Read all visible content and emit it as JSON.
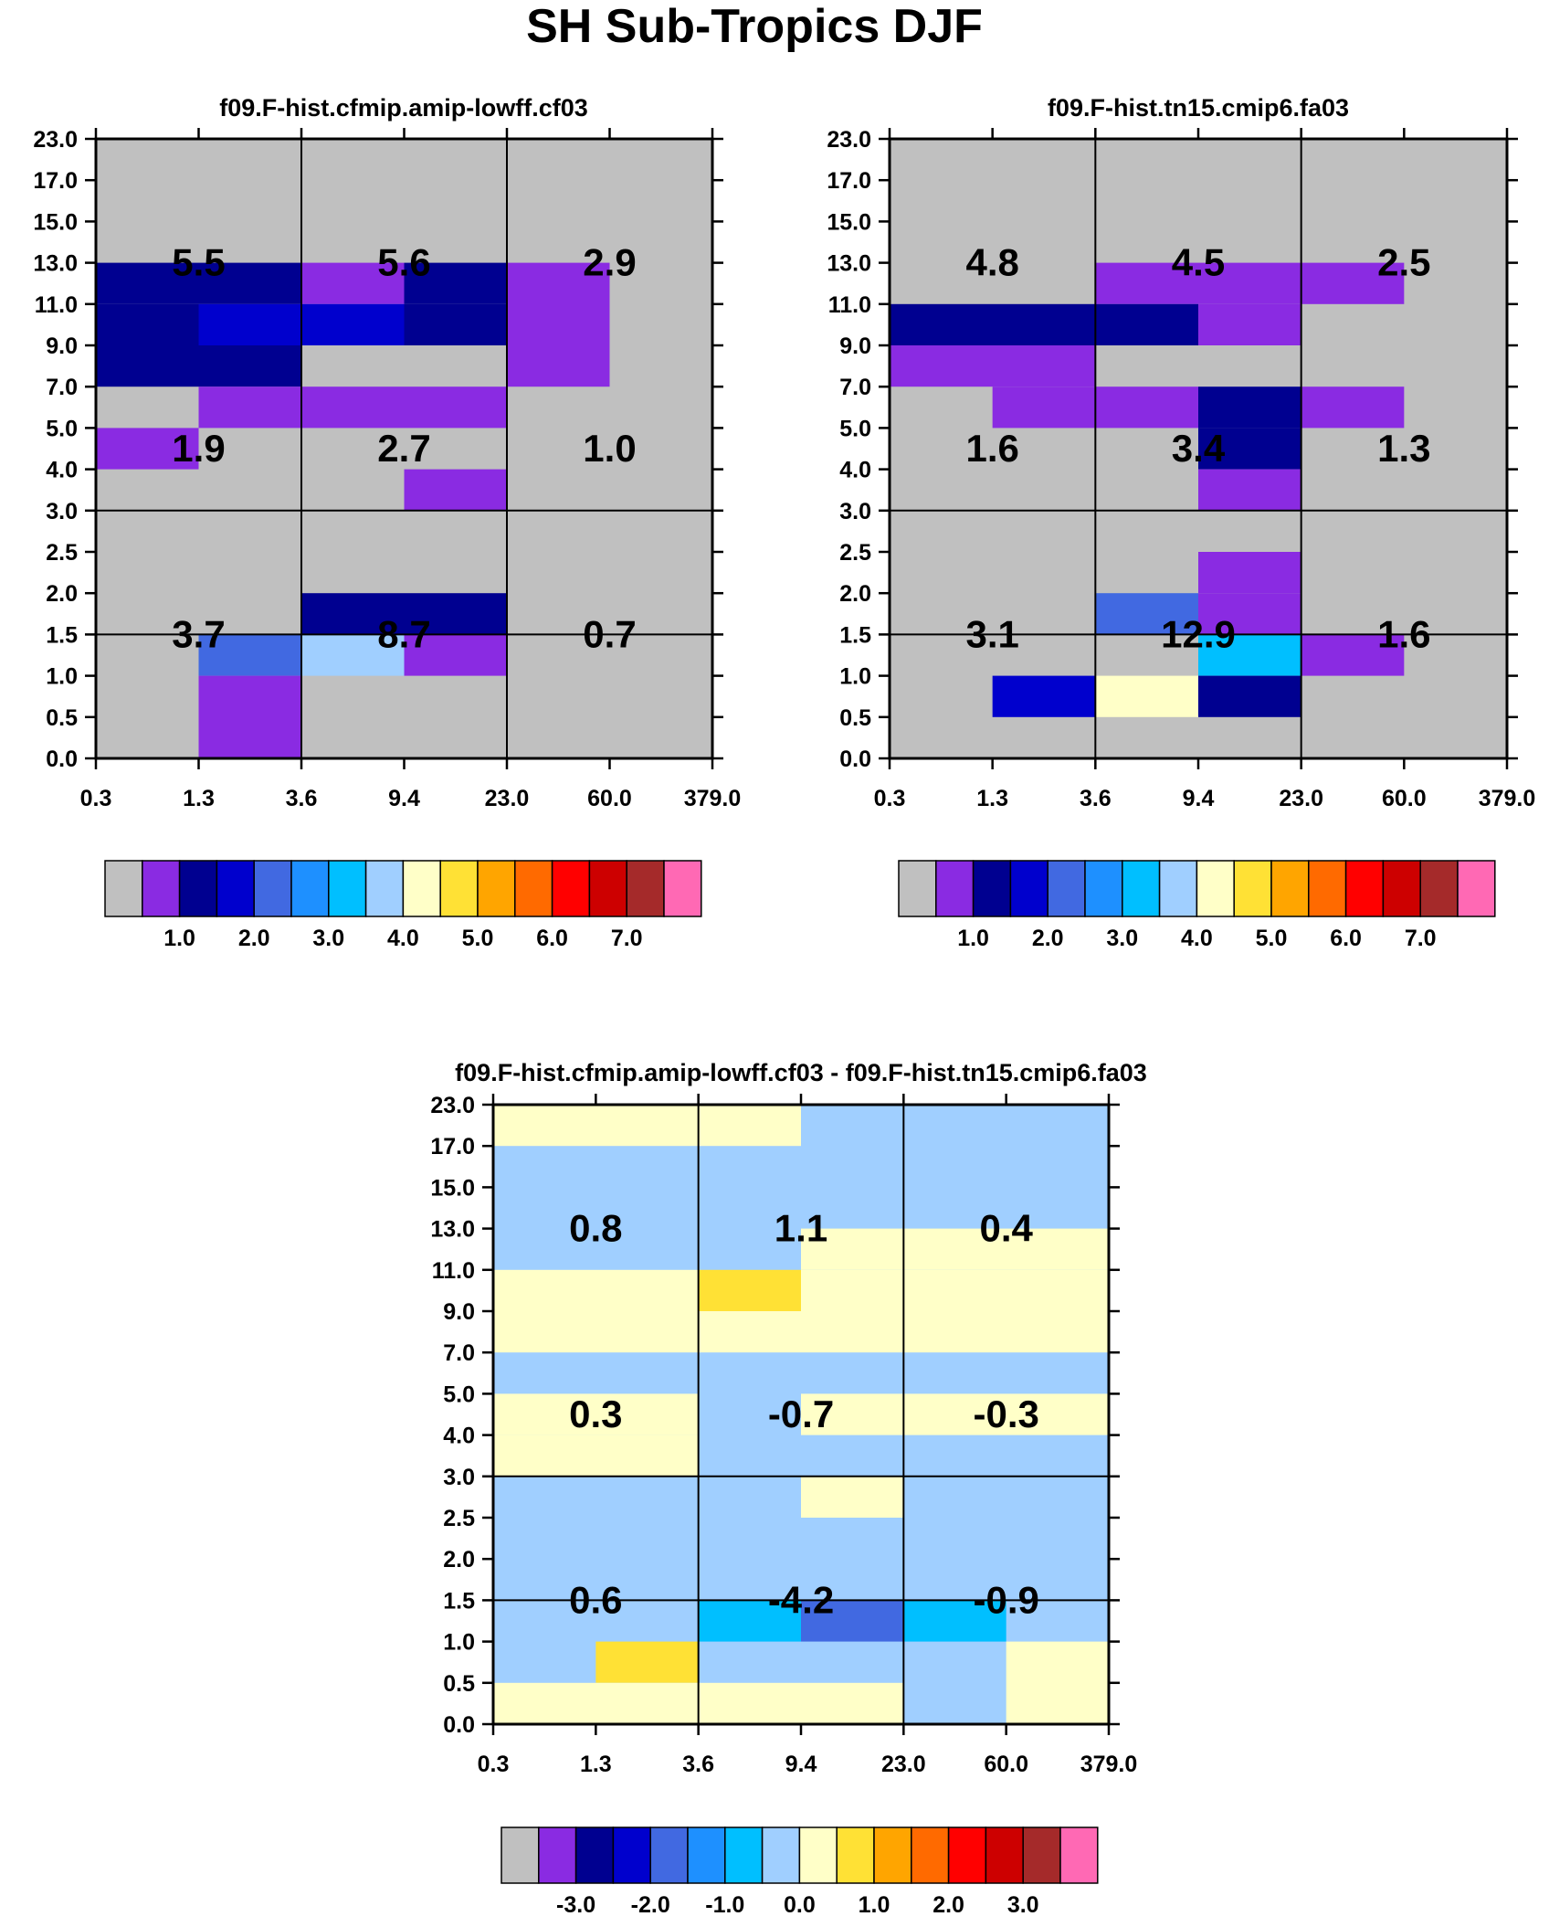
{
  "title": "SH Sub-Tropics DJF",
  "x_tick_labels": [
    "0.3",
    "1.3",
    "3.6",
    "9.4",
    "23.0",
    "60.0",
    "379.0"
  ],
  "y_tick_labels": [
    "0.0",
    "0.5",
    "1.0",
    "1.5",
    "2.0",
    "2.5",
    "3.0",
    "4.0",
    "5.0",
    "7.0",
    "9.0",
    "11.0",
    "13.0",
    "15.0",
    "17.0",
    "23.0"
  ],
  "colors": {
    "gray": "#c0c0c0",
    "purple": "#8a2be2",
    "navy": "#000090",
    "blue": "#0000cd",
    "royal": "#4169e1",
    "dodger": "#1e90ff",
    "sky": "#00bfff",
    "lightsky": "#a0cfff",
    "cream": "#ffffc8",
    "yellow": "#ffe135",
    "orange": "#ffa500",
    "darkorange": "#ff6a00",
    "red": "#ff0000",
    "crimson": "#cd0000",
    "brown": "#a52a2a",
    "pink": "#ff69b4"
  },
  "colorbar_colors": [
    "#c0c0c0",
    "#8a2be2",
    "#000090",
    "#0000cd",
    "#4169e1",
    "#1e90ff",
    "#00bfff",
    "#a0cfff",
    "#ffffc8",
    "#ffe135",
    "#ffa500",
    "#ff6a00",
    "#ff0000",
    "#cd0000",
    "#a52a2a",
    "#ff69b4"
  ],
  "chart_data": [
    {
      "type": "heatmap",
      "title": "f09.F-hist.cfmip.amip-lowff.cf03",
      "xlabel": "",
      "ylabel": "",
      "x_bins": 6,
      "y_bins": 15,
      "background": "gray",
      "cells": [
        {
          "x": [
            0,
            2
          ],
          "y": [
            11,
            12
          ],
          "c": "navy"
        },
        {
          "x": [
            1,
            2
          ],
          "y": [
            10,
            11
          ],
          "c": "blue"
        },
        {
          "x": [
            0,
            1
          ],
          "y": [
            10,
            11
          ],
          "c": "navy"
        },
        {
          "x": [
            0,
            2
          ],
          "y": [
            9,
            10
          ],
          "c": "navy"
        },
        {
          "x": [
            2,
            3
          ],
          "y": [
            11,
            12
          ],
          "c": "purple"
        },
        {
          "x": [
            3,
            4
          ],
          "y": [
            11,
            12
          ],
          "c": "navy"
        },
        {
          "x": [
            2,
            3
          ],
          "y": [
            10,
            11
          ],
          "c": "blue"
        },
        {
          "x": [
            3,
            4
          ],
          "y": [
            10,
            11
          ],
          "c": "navy"
        },
        {
          "x": [
            4,
            5
          ],
          "y": [
            9,
            12
          ],
          "c": "purple"
        },
        {
          "x": [
            1,
            4
          ],
          "y": [
            8,
            9
          ],
          "c": "purple"
        },
        {
          "x": [
            0,
            1
          ],
          "y": [
            7,
            8
          ],
          "c": "purple"
        },
        {
          "x": [
            3,
            4
          ],
          "y": [
            6,
            7
          ],
          "c": "purple"
        },
        {
          "x": [
            2,
            4
          ],
          "y": [
            3,
            4
          ],
          "c": "navy"
        },
        {
          "x": [
            1,
            2
          ],
          "y": [
            2,
            3
          ],
          "c": "royal"
        },
        {
          "x": [
            2,
            3
          ],
          "y": [
            2,
            3
          ],
          "c": "lightsky"
        },
        {
          "x": [
            3,
            4
          ],
          "y": [
            2,
            3
          ],
          "c": "purple"
        },
        {
          "x": [
            1,
            2
          ],
          "y": [
            0,
            2
          ],
          "c": "purple"
        }
      ],
      "grid_values": [
        [
          "5.5",
          "5.6",
          "2.9"
        ],
        [
          "1.9",
          "2.7",
          "1.0"
        ],
        [
          "3.7",
          "8.7",
          "0.7"
        ]
      ],
      "colorbar": {
        "tick_labels": [
          "1.0",
          "2.0",
          "3.0",
          "4.0",
          "5.0",
          "6.0",
          "7.0"
        ],
        "first_tick_boundary": 2
      }
    },
    {
      "type": "heatmap",
      "title": "f09.F-hist.tn15.cmip6.fa03",
      "xlabel": "",
      "ylabel": "",
      "x_bins": 6,
      "y_bins": 15,
      "background": "gray",
      "cells": [
        {
          "x": [
            2,
            4
          ],
          "y": [
            11,
            12
          ],
          "c": "purple"
        },
        {
          "x": [
            4,
            5
          ],
          "y": [
            11,
            12
          ],
          "c": "purple"
        },
        {
          "x": [
            0,
            3
          ],
          "y": [
            10,
            11
          ],
          "c": "navy"
        },
        {
          "x": [
            3,
            4
          ],
          "y": [
            10,
            11
          ],
          "c": "purple"
        },
        {
          "x": [
            0,
            2
          ],
          "y": [
            9,
            10
          ],
          "c": "purple"
        },
        {
          "x": [
            1,
            3
          ],
          "y": [
            8,
            9
          ],
          "c": "purple"
        },
        {
          "x": [
            3,
            4
          ],
          "y": [
            8,
            9
          ],
          "c": "navy"
        },
        {
          "x": [
            4,
            5
          ],
          "y": [
            8,
            9
          ],
          "c": "purple"
        },
        {
          "x": [
            3,
            4
          ],
          "y": [
            7,
            8
          ],
          "c": "navy"
        },
        {
          "x": [
            3,
            4
          ],
          "y": [
            6,
            7
          ],
          "c": "purple"
        },
        {
          "x": [
            3,
            4
          ],
          "y": [
            4,
            5
          ],
          "c": "purple"
        },
        {
          "x": [
            2,
            3
          ],
          "y": [
            3,
            4
          ],
          "c": "royal"
        },
        {
          "x": [
            3,
            4
          ],
          "y": [
            3,
            4
          ],
          "c": "purple"
        },
        {
          "x": [
            3,
            4
          ],
          "y": [
            2,
            3
          ],
          "c": "sky"
        },
        {
          "x": [
            4,
            5
          ],
          "y": [
            2,
            3
          ],
          "c": "purple"
        },
        {
          "x": [
            1,
            2
          ],
          "y": [
            1,
            2
          ],
          "c": "blue"
        },
        {
          "x": [
            2,
            3
          ],
          "y": [
            1,
            2
          ],
          "c": "cream"
        },
        {
          "x": [
            3,
            4
          ],
          "y": [
            1,
            2
          ],
          "c": "navy"
        }
      ],
      "grid_values": [
        [
          "4.8",
          "4.5",
          "2.5"
        ],
        [
          "1.6",
          "3.4",
          "1.3"
        ],
        [
          "3.1",
          "12.9",
          "1.6"
        ]
      ],
      "colorbar": {
        "tick_labels": [
          "1.0",
          "2.0",
          "3.0",
          "4.0",
          "5.0",
          "6.0",
          "7.0"
        ],
        "first_tick_boundary": 2
      }
    },
    {
      "type": "heatmap",
      "title": "f09.F-hist.cfmip.amip-lowff.cf03 - f09.F-hist.tn15.cmip6.fa03",
      "xlabel": "",
      "ylabel": "",
      "x_bins": 6,
      "y_bins": 15,
      "background": "lightsky",
      "cells": [
        {
          "x": [
            0,
            3
          ],
          "y": [
            14,
            15
          ],
          "c": "cream"
        },
        {
          "x": [
            3,
            6
          ],
          "y": [
            11,
            12
          ],
          "c": "cream"
        },
        {
          "x": [
            0,
            2
          ],
          "y": [
            10,
            11
          ],
          "c": "cream"
        },
        {
          "x": [
            2,
            3
          ],
          "y": [
            10,
            11
          ],
          "c": "yellow"
        },
        {
          "x": [
            3,
            6
          ],
          "y": [
            10,
            11
          ],
          "c": "cream"
        },
        {
          "x": [
            0,
            6
          ],
          "y": [
            9,
            10
          ],
          "c": "cream"
        },
        {
          "x": [
            0,
            2
          ],
          "y": [
            7,
            8
          ],
          "c": "cream"
        },
        {
          "x": [
            0,
            2
          ],
          "y": [
            6,
            7
          ],
          "c": "cream"
        },
        {
          "x": [
            3,
            6
          ],
          "y": [
            7,
            8
          ],
          "c": "cream"
        },
        {
          "x": [
            3,
            4
          ],
          "y": [
            5,
            6
          ],
          "c": "cream"
        },
        {
          "x": [
            2,
            3
          ],
          "y": [
            2,
            3
          ],
          "c": "sky"
        },
        {
          "x": [
            3,
            4
          ],
          "y": [
            2,
            3
          ],
          "c": "royal"
        },
        {
          "x": [
            4,
            5
          ],
          "y": [
            2,
            3
          ],
          "c": "sky"
        },
        {
          "x": [
            1,
            2
          ],
          "y": [
            1,
            2
          ],
          "c": "yellow"
        },
        {
          "x": [
            0,
            4
          ],
          "y": [
            0,
            1
          ],
          "c": "cream"
        },
        {
          "x": [
            5,
            6
          ],
          "y": [
            0,
            2
          ],
          "c": "cream"
        }
      ],
      "grid_values": [
        [
          "0.8",
          "1.1",
          "0.4"
        ],
        [
          "0.3",
          "-0.7",
          "-0.3"
        ],
        [
          "0.6",
          "-4.2",
          "-0.9"
        ]
      ],
      "colorbar": {
        "tick_labels": [
          "-3.0",
          "-2.0",
          "-1.0",
          "0.0",
          "1.0",
          "2.0",
          "3.0"
        ],
        "first_tick_boundary": 2
      }
    }
  ]
}
